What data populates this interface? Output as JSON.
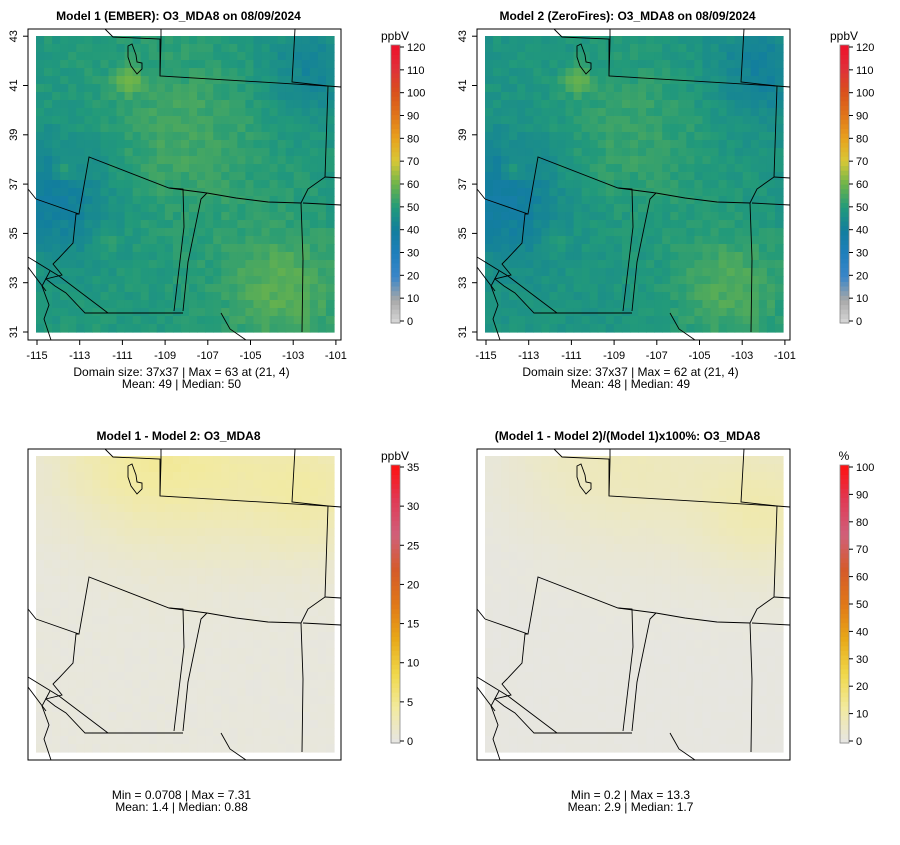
{
  "panels": [
    {
      "title": "Model 1 (EMBER): O3_MDA8 on 08/09/2024",
      "unit": "ppbV",
      "scale": {
        "ticks": [
          "120",
          "110",
          "100",
          "90",
          "80",
          "70",
          "60",
          "50",
          "40",
          "30",
          "20",
          "10",
          "0"
        ],
        "max": 120
      },
      "field": "absolute",
      "level_offset": 0,
      "footer": [
        "Domain size: 37x37 | Max = 63 at (21, 4)",
        "Mean: 49 |  Median: 50"
      ],
      "show_axes": true
    },
    {
      "title": "Model 2 (ZeroFires): O3_MDA8 on 08/09/2024",
      "unit": "ppbV",
      "scale": {
        "ticks": [
          "120",
          "110",
          "100",
          "90",
          "80",
          "70",
          "60",
          "50",
          "40",
          "30",
          "20",
          "10",
          "0"
        ],
        "max": 120
      },
      "field": "absolute",
      "level_offset": -1.4,
      "footer": [
        "Domain size: 37x37 | Max = 62 at (21, 4)",
        "Mean: 48 |  Median: 49"
      ],
      "show_axes": true
    },
    {
      "title": "Model 1 - Model 2: O3_MDA8",
      "unit": "ppbV",
      "scale": {
        "ticks": [
          "35",
          "30",
          "25",
          "20",
          "15",
          "10",
          "5",
          "0"
        ],
        "max": 35
      },
      "field": "difference",
      "level_offset": 0,
      "footer": [
        "Min = 0.0708 | Max = 7.31",
        "Mean: 1.4 |  Median: 0.88"
      ],
      "show_axes": false
    },
    {
      "title": "(Model 1 - Model 2)/(Model 1)x100%: O3_MDA8",
      "unit": "%",
      "scale": {
        "ticks": [
          "100",
          "90",
          "80",
          "70",
          "60",
          "50",
          "40",
          "30",
          "20",
          "10",
          "0"
        ],
        "max": 100
      },
      "field": "percent",
      "level_offset": 0,
      "footer": [
        "Min = 0.2 | Max = 13.3",
        "Mean: 2.9 |  Median: 1.7"
      ],
      "show_axes": false
    }
  ],
  "axes": {
    "x_ticks": [
      "-115",
      "-113",
      "-111",
      "-109",
      "-107",
      "-105",
      "-103",
      "-101"
    ],
    "y_ticks": [
      "31",
      "33",
      "35",
      "37",
      "39",
      "41",
      "43"
    ]
  },
  "colors": {
    "abs_ramp": [
      "#d9d9d9",
      "#a8a8a8",
      "#3a86c8",
      "#1f7fbd",
      "#127e9e",
      "#229a7a",
      "#6cb44a",
      "#d8c836",
      "#e8a11e",
      "#e0741a",
      "#d9501c",
      "#e0303a",
      "#f0102a"
    ],
    "diff_ramp": [
      "#e6e6e6",
      "#f2eaa0",
      "#f0d84a",
      "#e8a818",
      "#e07818",
      "#d55a2a",
      "#d0607a",
      "#e03a55",
      "#ff1010"
    ]
  }
}
